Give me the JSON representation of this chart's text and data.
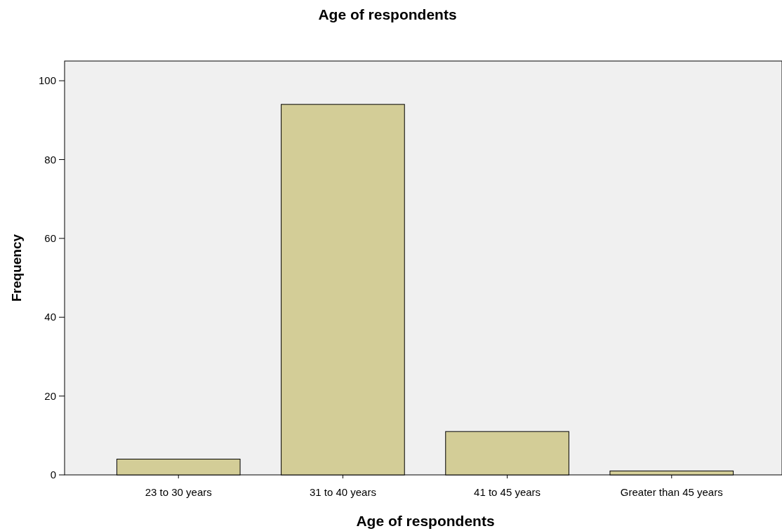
{
  "chart_data": {
    "type": "bar",
    "title": "Age of respondents",
    "xlabel": "Age of respondents",
    "ylabel": "Frequency",
    "categories": [
      "23 to 30 years",
      "31 to 40 years",
      "41 to 45 years",
      "Greater than 45 years"
    ],
    "values": [
      4,
      94,
      11,
      1
    ],
    "color": "#d3cd97",
    "ylim": [
      0,
      105
    ],
    "yticks": [
      0,
      20,
      40,
      60,
      80,
      100
    ],
    "grid": false
  }
}
